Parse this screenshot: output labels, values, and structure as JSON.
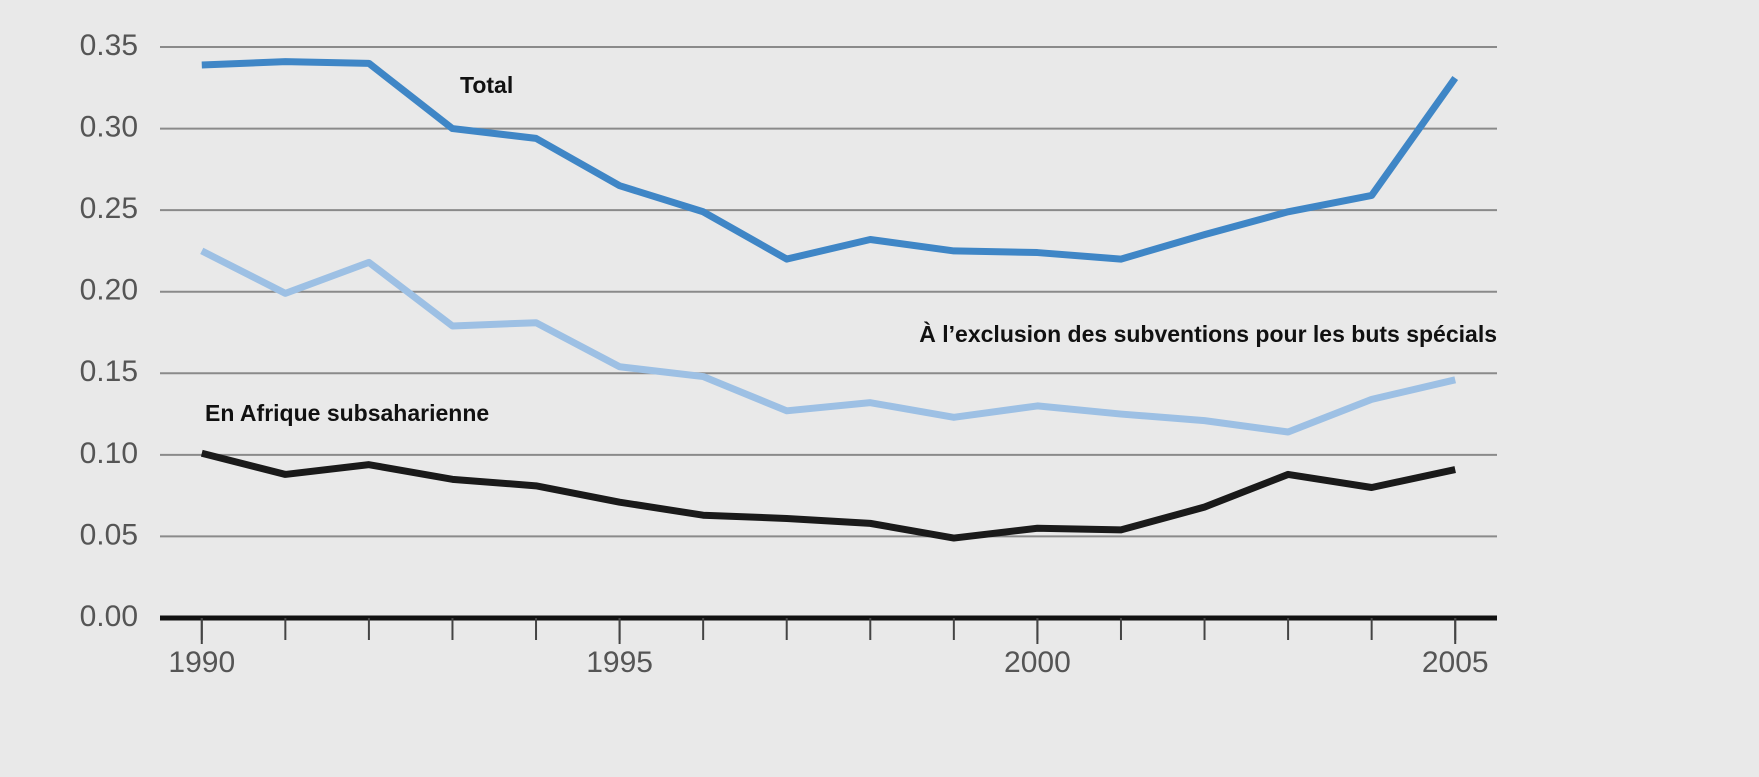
{
  "chart_data": {
    "type": "line",
    "x": [
      1990,
      1991,
      1992,
      1993,
      1994,
      1995,
      1996,
      1997,
      1998,
      1999,
      2000,
      2001,
      2002,
      2003,
      2004,
      2005
    ],
    "series": [
      {
        "name": "Total",
        "color": "#3f86c6",
        "values": [
          0.339,
          0.341,
          0.34,
          0.3,
          0.294,
          0.265,
          0.249,
          0.22,
          0.232,
          0.225,
          0.224,
          0.22,
          0.235,
          0.249,
          0.259,
          0.331
        ]
      },
      {
        "name": "À l’exclusion des subventions pour les buts spécials",
        "color": "#9dc0e4",
        "values": [
          0.225,
          0.199,
          0.218,
          0.179,
          0.181,
          0.154,
          0.148,
          0.127,
          0.132,
          0.123,
          0.13,
          0.125,
          0.121,
          0.114,
          0.134,
          0.146
        ]
      },
      {
        "name": "En Afrique subsaharienne",
        "color": "#1a1a1a",
        "values": [
          0.101,
          0.088,
          0.094,
          0.085,
          0.081,
          0.071,
          0.063,
          0.061,
          0.058,
          0.049,
          0.055,
          0.054,
          0.068,
          0.088,
          0.08,
          0.091
        ]
      }
    ],
    "xlim": [
      1989.5,
      2005.5
    ],
    "xticks": [
      1990,
      1995,
      2000,
      2005
    ],
    "ylim": [
      0,
      0.35
    ],
    "yticks": [
      {
        "value": 0,
        "label": "0.00"
      },
      {
        "value": 0.05,
        "label": "0.05"
      },
      {
        "value": 0.1,
        "label": "0.10"
      },
      {
        "value": 0.15,
        "label": "0.15"
      },
      {
        "value": 0.2,
        "label": "0.20"
      },
      {
        "value": 0.25,
        "label": "0.25"
      },
      {
        "value": 0.3,
        "label": "0.30"
      },
      {
        "value": 0.35,
        "label": "0.35"
      }
    ],
    "grid": true
  }
}
